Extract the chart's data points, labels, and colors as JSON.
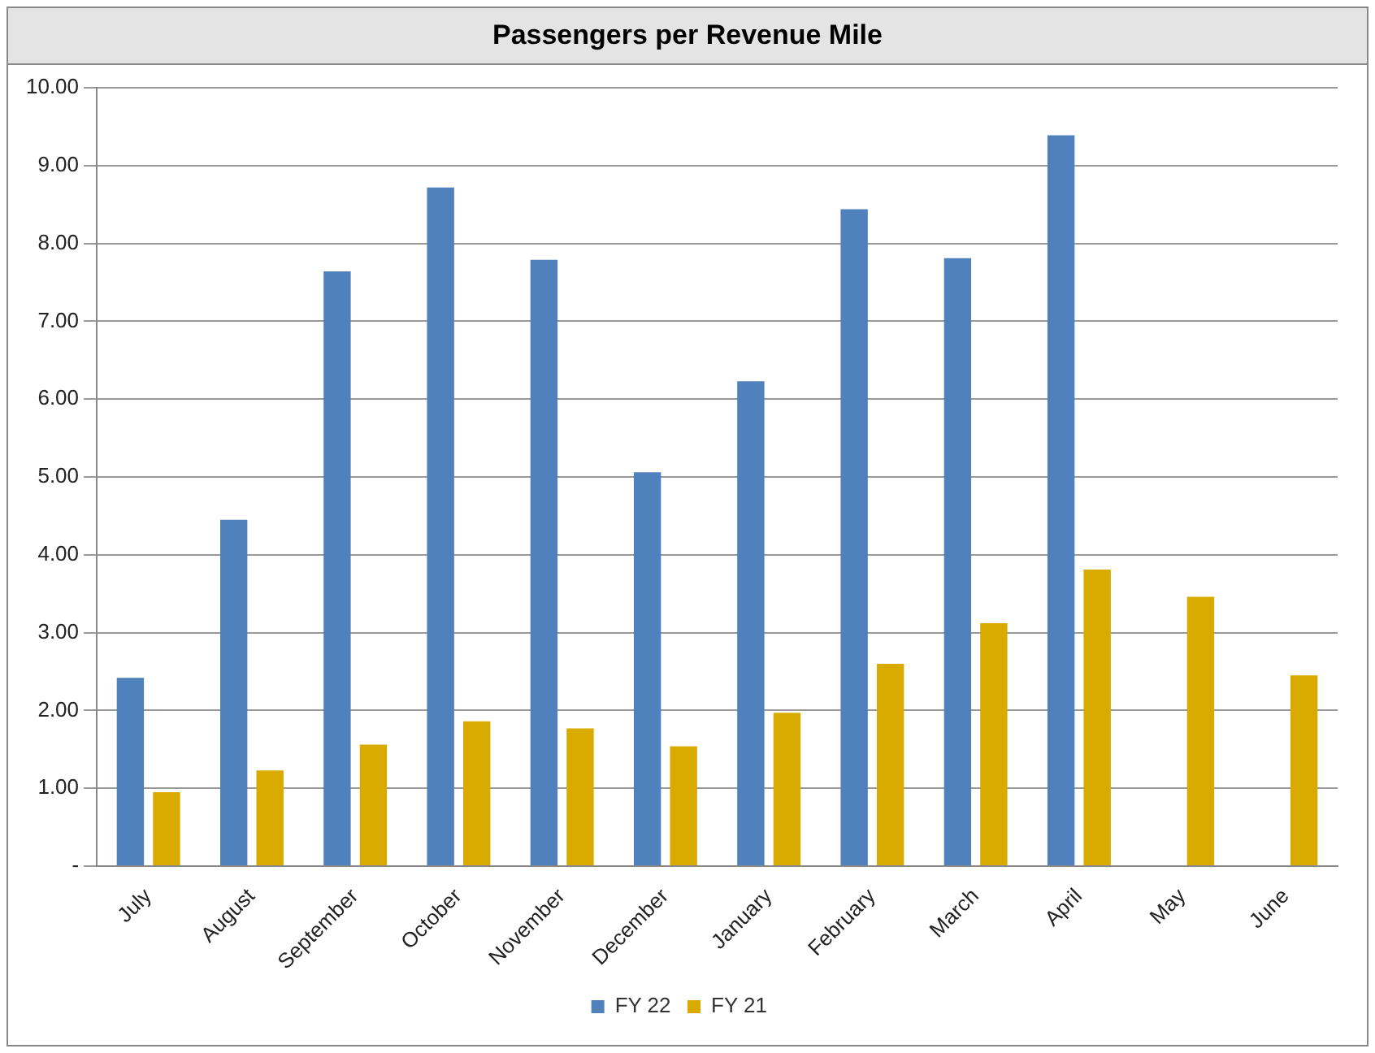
{
  "chart_data": {
    "type": "bar",
    "title": "Passengers per Revenue Mile",
    "categories": [
      "July",
      "August",
      "September",
      "October",
      "November",
      "December",
      "January",
      "February",
      "March",
      "April",
      "May",
      "June"
    ],
    "series": [
      {
        "name": "FY 22",
        "color": "#4f81bd",
        "values": [
          2.42,
          4.45,
          7.64,
          8.72,
          7.79,
          5.06,
          6.23,
          8.44,
          7.81,
          9.39,
          null,
          null
        ]
      },
      {
        "name": "FY 21",
        "color": "#d9aa00",
        "values": [
          0.95,
          1.23,
          1.56,
          1.86,
          1.77,
          1.54,
          1.97,
          2.6,
          3.12,
          3.81,
          3.46,
          2.45
        ]
      }
    ],
    "ylim": [
      0,
      10
    ],
    "yticks": [
      {
        "value": 0,
        "label": "-"
      },
      {
        "value": 1,
        "label": "1.00"
      },
      {
        "value": 2,
        "label": "2.00"
      },
      {
        "value": 3,
        "label": "3.00"
      },
      {
        "value": 4,
        "label": "4.00"
      },
      {
        "value": 5,
        "label": "5.00"
      },
      {
        "value": 6,
        "label": "6.00"
      },
      {
        "value": 7,
        "label": "7.00"
      },
      {
        "value": 8,
        "label": "8.00"
      },
      {
        "value": 9,
        "label": "9.00"
      },
      {
        "value": 10,
        "label": "10.00"
      }
    ],
    "grid": "y",
    "legend": "bottom"
  }
}
